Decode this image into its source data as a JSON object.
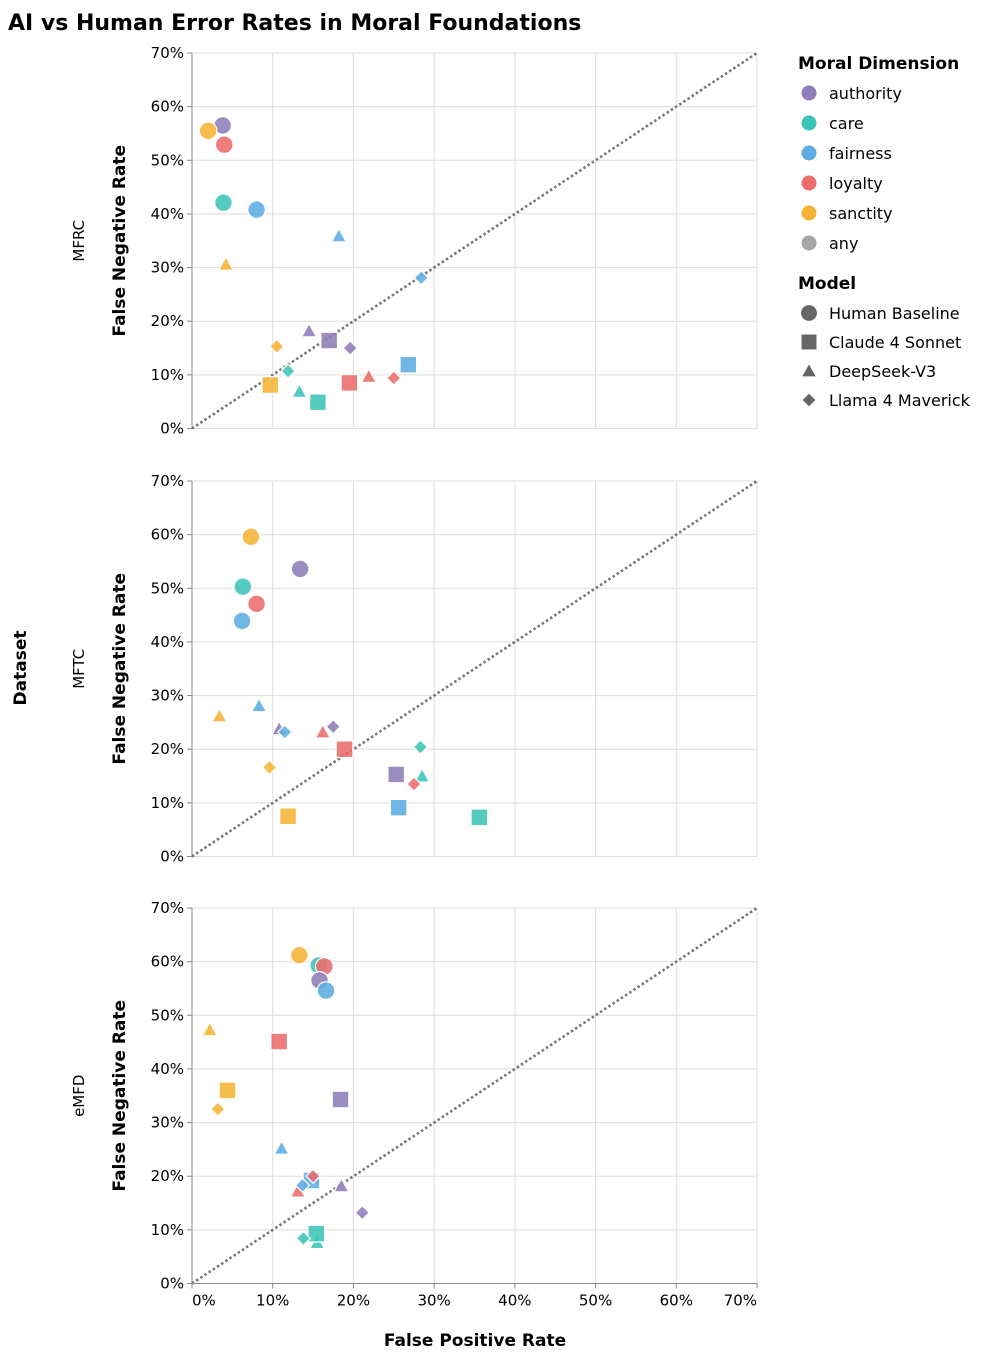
{
  "chart_data": {
    "type": "scatter",
    "title": "AI vs Human Error Rates in Moral Foundations",
    "xlabel": "False Positive Rate",
    "ylabel": "False Negative Rate",
    "row_title": "Dataset",
    "xlim": [
      0,
      0.7
    ],
    "ylim": [
      0,
      0.7
    ],
    "ticks": [
      0,
      0.1,
      0.2,
      0.3,
      0.4,
      0.5,
      0.6,
      0.7
    ],
    "tick_labels": [
      "0%",
      "10%",
      "20%",
      "30%",
      "40%",
      "50%",
      "60%",
      "70%"
    ],
    "reference_line": "y = x",
    "legend_color": {
      "title": "Moral Dimension",
      "entries": [
        {
          "name": "authority",
          "color": "#8E7DB8"
        },
        {
          "name": "care",
          "color": "#3BC4B6"
        },
        {
          "name": "fairness",
          "color": "#5DADE2"
        },
        {
          "name": "loyalty",
          "color": "#EC6B6B"
        },
        {
          "name": "sanctity",
          "color": "#F5B335"
        },
        {
          "name": "any",
          "color": "#A6A6A6"
        }
      ]
    },
    "legend_shape": {
      "title": "Model",
      "entries": [
        {
          "name": "Human Baseline",
          "shape": "circle"
        },
        {
          "name": "Claude 4 Sonnet",
          "shape": "square"
        },
        {
          "name": "DeepSeek-V3",
          "shape": "triangle"
        },
        {
          "name": "Llama 4 Maverick",
          "shape": "diamond"
        }
      ]
    },
    "panels": [
      {
        "dataset": "MFRC",
        "points": [
          {
            "dim": "authority",
            "model": "Human Baseline",
            "fpr": 0.038,
            "fnr": 0.565
          },
          {
            "dim": "sanctity",
            "model": "Human Baseline",
            "fpr": 0.02,
            "fnr": 0.555
          },
          {
            "dim": "loyalty",
            "model": "Human Baseline",
            "fpr": 0.04,
            "fnr": 0.529
          },
          {
            "dim": "care",
            "model": "Human Baseline",
            "fpr": 0.039,
            "fnr": 0.421
          },
          {
            "dim": "fairness",
            "model": "Human Baseline",
            "fpr": 0.08,
            "fnr": 0.408
          },
          {
            "dim": "fairness",
            "model": "DeepSeek-V3",
            "fpr": 0.182,
            "fnr": 0.359
          },
          {
            "dim": "sanctity",
            "model": "DeepSeek-V3",
            "fpr": 0.042,
            "fnr": 0.306
          },
          {
            "dim": "authority",
            "model": "DeepSeek-V3",
            "fpr": 0.145,
            "fnr": 0.182
          },
          {
            "dim": "loyalty",
            "model": "DeepSeek-V3",
            "fpr": 0.219,
            "fnr": 0.097
          },
          {
            "dim": "care",
            "model": "DeepSeek-V3",
            "fpr": 0.133,
            "fnr": 0.069
          },
          {
            "dim": "authority",
            "model": "Claude 4 Sonnet",
            "fpr": 0.17,
            "fnr": 0.164
          },
          {
            "dim": "fairness",
            "model": "Claude 4 Sonnet",
            "fpr": 0.268,
            "fnr": 0.119
          },
          {
            "dim": "loyalty",
            "model": "Claude 4 Sonnet",
            "fpr": 0.195,
            "fnr": 0.085
          },
          {
            "dim": "sanctity",
            "model": "Claude 4 Sonnet",
            "fpr": 0.097,
            "fnr": 0.081
          },
          {
            "dim": "care",
            "model": "Claude 4 Sonnet",
            "fpr": 0.156,
            "fnr": 0.049
          },
          {
            "dim": "fairness",
            "model": "Llama 4 Maverick",
            "fpr": 0.284,
            "fnr": 0.281
          },
          {
            "dim": "authority",
            "model": "Llama 4 Maverick",
            "fpr": 0.196,
            "fnr": 0.15
          },
          {
            "dim": "sanctity",
            "model": "Llama 4 Maverick",
            "fpr": 0.105,
            "fnr": 0.153
          },
          {
            "dim": "care",
            "model": "Llama 4 Maverick",
            "fpr": 0.119,
            "fnr": 0.107
          },
          {
            "dim": "loyalty",
            "model": "Llama 4 Maverick",
            "fpr": 0.25,
            "fnr": 0.094
          }
        ]
      },
      {
        "dataset": "MFTC",
        "points": [
          {
            "dim": "sanctity",
            "model": "Human Baseline",
            "fpr": 0.073,
            "fnr": 0.596
          },
          {
            "dim": "authority",
            "model": "Human Baseline",
            "fpr": 0.134,
            "fnr": 0.536
          },
          {
            "dim": "care",
            "model": "Human Baseline",
            "fpr": 0.063,
            "fnr": 0.503
          },
          {
            "dim": "loyalty",
            "model": "Human Baseline",
            "fpr": 0.08,
            "fnr": 0.471
          },
          {
            "dim": "fairness",
            "model": "Human Baseline",
            "fpr": 0.062,
            "fnr": 0.439
          },
          {
            "dim": "fairness",
            "model": "DeepSeek-V3",
            "fpr": 0.083,
            "fnr": 0.281
          },
          {
            "dim": "sanctity",
            "model": "DeepSeek-V3",
            "fpr": 0.034,
            "fnr": 0.262
          },
          {
            "dim": "authority",
            "model": "DeepSeek-V3",
            "fpr": 0.108,
            "fnr": 0.238
          },
          {
            "dim": "loyalty",
            "model": "DeepSeek-V3",
            "fpr": 0.162,
            "fnr": 0.232
          },
          {
            "dim": "care",
            "model": "DeepSeek-V3",
            "fpr": 0.285,
            "fnr": 0.15
          },
          {
            "dim": "loyalty",
            "model": "Claude 4 Sonnet",
            "fpr": 0.189,
            "fnr": 0.2
          },
          {
            "dim": "authority",
            "model": "Claude 4 Sonnet",
            "fpr": 0.253,
            "fnr": 0.153
          },
          {
            "dim": "fairness",
            "model": "Claude 4 Sonnet",
            "fpr": 0.256,
            "fnr": 0.091
          },
          {
            "dim": "sanctity",
            "model": "Claude 4 Sonnet",
            "fpr": 0.119,
            "fnr": 0.075
          },
          {
            "dim": "care",
            "model": "Claude 4 Sonnet",
            "fpr": 0.356,
            "fnr": 0.073
          },
          {
            "dim": "authority",
            "model": "Llama 4 Maverick",
            "fpr": 0.175,
            "fnr": 0.242
          },
          {
            "dim": "fairness",
            "model": "Llama 4 Maverick",
            "fpr": 0.115,
            "fnr": 0.232
          },
          {
            "dim": "care",
            "model": "Llama 4 Maverick",
            "fpr": 0.283,
            "fnr": 0.204
          },
          {
            "dim": "sanctity",
            "model": "Llama 4 Maverick",
            "fpr": 0.096,
            "fnr": 0.166
          },
          {
            "dim": "loyalty",
            "model": "Llama 4 Maverick",
            "fpr": 0.275,
            "fnr": 0.135
          }
        ]
      },
      {
        "dataset": "eMFD",
        "points": [
          {
            "dim": "sanctity",
            "model": "Human Baseline",
            "fpr": 0.133,
            "fnr": 0.612
          },
          {
            "dim": "care",
            "model": "Human Baseline",
            "fpr": 0.157,
            "fnr": 0.593
          },
          {
            "dim": "loyalty",
            "model": "Human Baseline",
            "fpr": 0.164,
            "fnr": 0.591
          },
          {
            "dim": "authority",
            "model": "Human Baseline",
            "fpr": 0.158,
            "fnr": 0.565
          },
          {
            "dim": "fairness",
            "model": "Human Baseline",
            "fpr": 0.166,
            "fnr": 0.546
          },
          {
            "dim": "sanctity",
            "model": "DeepSeek-V3",
            "fpr": 0.022,
            "fnr": 0.473
          },
          {
            "dim": "fairness",
            "model": "DeepSeek-V3",
            "fpr": 0.111,
            "fnr": 0.252
          },
          {
            "dim": "authority",
            "model": "DeepSeek-V3",
            "fpr": 0.185,
            "fnr": 0.182
          },
          {
            "dim": "loyalty",
            "model": "DeepSeek-V3",
            "fpr": 0.131,
            "fnr": 0.172
          },
          {
            "dim": "care",
            "model": "DeepSeek-V3",
            "fpr": 0.155,
            "fnr": 0.076
          },
          {
            "dim": "loyalty",
            "model": "Claude 4 Sonnet",
            "fpr": 0.108,
            "fnr": 0.451
          },
          {
            "dim": "sanctity",
            "model": "Claude 4 Sonnet",
            "fpr": 0.044,
            "fnr": 0.36
          },
          {
            "dim": "authority",
            "model": "Claude 4 Sonnet",
            "fpr": 0.184,
            "fnr": 0.343
          },
          {
            "dim": "fairness",
            "model": "Claude 4 Sonnet",
            "fpr": 0.148,
            "fnr": 0.192
          },
          {
            "dim": "care",
            "model": "Claude 4 Sonnet",
            "fpr": 0.154,
            "fnr": 0.093
          },
          {
            "dim": "sanctity",
            "model": "Llama 4 Maverick",
            "fpr": 0.032,
            "fnr": 0.325
          },
          {
            "dim": "loyalty",
            "model": "Llama 4 Maverick",
            "fpr": 0.15,
            "fnr": 0.2
          },
          {
            "dim": "fairness",
            "model": "Llama 4 Maverick",
            "fpr": 0.137,
            "fnr": 0.183
          },
          {
            "dim": "authority",
            "model": "Llama 4 Maverick",
            "fpr": 0.211,
            "fnr": 0.132
          },
          {
            "dim": "care",
            "model": "Llama 4 Maverick",
            "fpr": 0.138,
            "fnr": 0.084
          }
        ]
      }
    ]
  }
}
